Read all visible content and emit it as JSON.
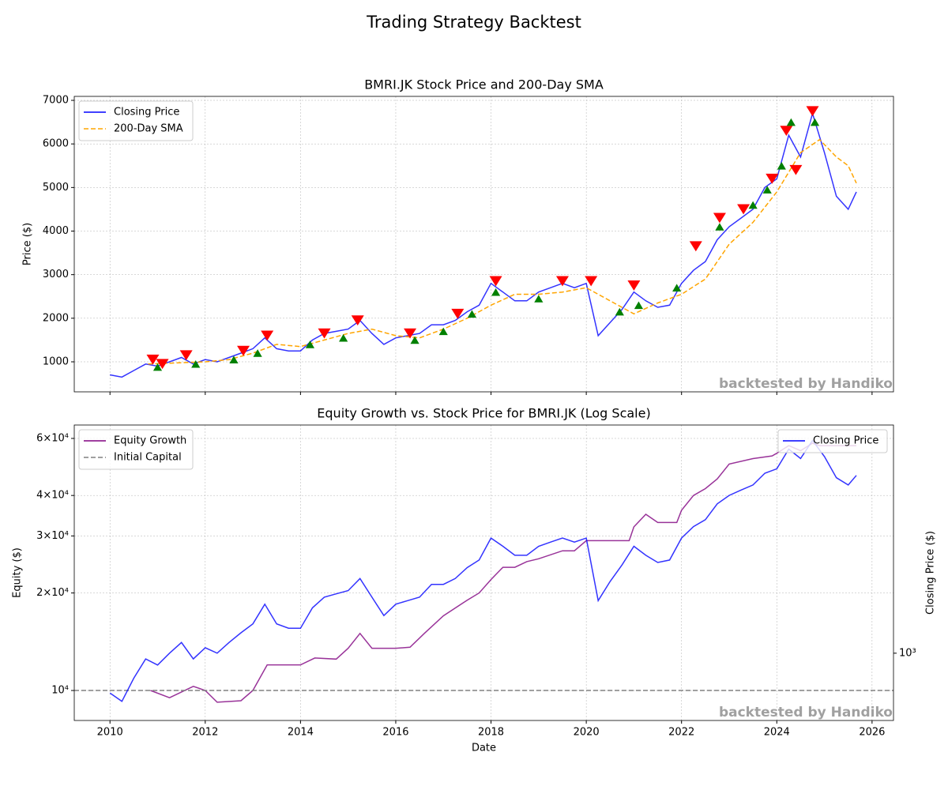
{
  "title": "Trading Strategy Backtest",
  "chart_data": [
    {
      "type": "line",
      "title": "BMRI.JK Stock Price and 200-Day SMA",
      "ylabel": "Price ($)",
      "xlim": [
        2009.25,
        2026.45
      ],
      "xticks": [
        2010,
        2012,
        2014,
        2016,
        2018,
        2020,
        2022,
        2024,
        2026
      ],
      "show_xticklabels": false,
      "ylim": [
        311,
        7091
      ],
      "yticks": [
        1000,
        2000,
        3000,
        4000,
        5000,
        6000,
        7000
      ],
      "grid": true,
      "legend": "upper left",
      "watermark": "backtested by Handiko",
      "series": [
        {
          "name": "Closing Price",
          "color": "#0000ff",
          "dashed": false,
          "x": [
            2010.0,
            2010.25,
            2010.5,
            2010.75,
            2011.0,
            2011.25,
            2011.5,
            2011.75,
            2012.0,
            2012.25,
            2012.5,
            2012.75,
            2013.0,
            2013.25,
            2013.5,
            2013.75,
            2014.0,
            2014.25,
            2014.5,
            2014.75,
            2015.0,
            2015.25,
            2015.5,
            2015.75,
            2016.0,
            2016.25,
            2016.5,
            2016.75,
            2017.0,
            2017.25,
            2017.5,
            2017.75,
            2018.0,
            2018.25,
            2018.5,
            2018.75,
            2019.0,
            2019.25,
            2019.5,
            2019.75,
            2020.0,
            2020.25,
            2020.5,
            2020.75,
            2021.0,
            2021.25,
            2021.5,
            2021.75,
            2022.0,
            2022.25,
            2022.5,
            2022.75,
            2023.0,
            2023.25,
            2023.5,
            2023.75,
            2024.0,
            2024.25,
            2024.5,
            2024.75,
            2025.0,
            2025.25,
            2025.5,
            2025.67
          ],
          "values": [
            700,
            650,
            800,
            950,
            900,
            1000,
            1100,
            950,
            1050,
            1000,
            1100,
            1200,
            1300,
            1550,
            1300,
            1250,
            1250,
            1500,
            1650,
            1700,
            1750,
            1950,
            1650,
            1400,
            1550,
            1600,
            1650,
            1850,
            1850,
            1950,
            2150,
            2300,
            2800,
            2600,
            2400,
            2400,
            2600,
            2700,
            2800,
            2700,
            2800,
            1600,
            1900,
            2200,
            2600,
            2400,
            2250,
            2300,
            2800,
            3100,
            3300,
            3800,
            4100,
            4300,
            4500,
            5000,
            5200,
            6200,
            5700,
            6700,
            5800,
            4800,
            4500,
            4900
          ]
        },
        {
          "name": "200-Day SMA",
          "color": "#ffa500",
          "dashed": true,
          "x": [
            2010.8,
            2011.5,
            2012.0,
            2012.5,
            2013.0,
            2013.5,
            2014.0,
            2014.5,
            2015.0,
            2015.5,
            2016.0,
            2016.5,
            2017.0,
            2017.5,
            2018.0,
            2018.5,
            2019.0,
            2019.5,
            2020.0,
            2020.5,
            2021.0,
            2021.5,
            2022.0,
            2022.5,
            2023.0,
            2023.5,
            2024.0,
            2024.5,
            2024.9,
            2025.25,
            2025.5,
            2025.67
          ],
          "values": [
            950,
            980,
            1000,
            1050,
            1200,
            1400,
            1350,
            1500,
            1650,
            1750,
            1600,
            1550,
            1750,
            2000,
            2300,
            2550,
            2550,
            2600,
            2700,
            2400,
            2100,
            2350,
            2550,
            2900,
            3700,
            4200,
            4900,
            5800,
            6100,
            5700,
            5500,
            5100
          ]
        }
      ],
      "markers": [
        {
          "marker": "v",
          "color": "#ff0000",
          "x": [
            2010.9,
            2011.1,
            2011.6,
            2012.8,
            2013.3,
            2014.5,
            2015.2,
            2016.3,
            2017.3,
            2018.1,
            2019.5,
            2020.1,
            2021.0,
            2022.3,
            2022.8,
            2023.3,
            2023.9,
            2024.2,
            2024.4,
            2024.75
          ],
          "values": [
            1050,
            950,
            1150,
            1250,
            1600,
            1650,
            1950,
            1650,
            2100,
            2850,
            2850,
            2850,
            2750,
            3650,
            4300,
            4500,
            5200,
            6300,
            5400,
            6750
          ]
        },
        {
          "marker": "^",
          "color": "#008000",
          "x": [
            2011.0,
            2011.8,
            2012.6,
            2013.1,
            2014.2,
            2014.9,
            2016.4,
            2017.0,
            2017.6,
            2018.1,
            2019.0,
            2020.7,
            2021.1,
            2021.9,
            2022.8,
            2023.5,
            2023.8,
            2024.1,
            2024.3,
            2024.8
          ],
          "values": [
            880,
            950,
            1050,
            1200,
            1400,
            1550,
            1500,
            1700,
            2100,
            2600,
            2450,
            2150,
            2300,
            2700,
            4100,
            4600,
            4950,
            5500,
            6500,
            6500
          ]
        }
      ]
    },
    {
      "type": "line",
      "title": "Equity Growth vs. Stock Price for BMRI.JK (Log Scale)",
      "xlabel": "Date",
      "ylabel": "Equity ($)",
      "y2label": "Closing Price ($)",
      "xlim": [
        2009.25,
        2026.45
      ],
      "xticks": [
        2010,
        2012,
        2014,
        2016,
        2018,
        2020,
        2022,
        2024,
        2026
      ],
      "show_xticklabels": true,
      "ylog": true,
      "ylim": [
        8080,
        66000
      ],
      "yticks": [
        {
          "value": 10000,
          "label": "10⁴"
        },
        {
          "value": 20000,
          "label": "2×10⁴"
        },
        {
          "value": 30000,
          "label": "3×10⁴"
        },
        {
          "value": 40000,
          "label": "4×10⁴"
        },
        {
          "value": 60000,
          "label": "6×10⁴"
        }
      ],
      "y2log": true,
      "y2lim": [
        548,
        7690
      ],
      "y2ticks": [
        {
          "value": 1000,
          "label": "10³"
        }
      ],
      "grid": true,
      "legend": "upper left",
      "legend2": "upper right",
      "watermark": "backtested by Handiko",
      "series": [
        {
          "name": "Equity Growth",
          "color": "#800080",
          "dashed": false,
          "x": [
            2010.85,
            2011.25,
            2011.75,
            2012.0,
            2012.25,
            2012.75,
            2013.0,
            2013.3,
            2013.6,
            2014.0,
            2014.3,
            2014.75,
            2015.0,
            2015.25,
            2015.5,
            2016.0,
            2016.3,
            2016.6,
            2017.0,
            2017.5,
            2017.75,
            2018.0,
            2018.25,
            2018.5,
            2018.75,
            2019.0,
            2019.5,
            2019.75,
            2020.0,
            2020.5,
            2020.9,
            2021.0,
            2021.25,
            2021.5,
            2021.9,
            2022.0,
            2022.25,
            2022.5,
            2022.75,
            2023.0,
            2023.5,
            2023.9,
            2024.0,
            2024.25,
            2024.5,
            2024.75,
            2024.9,
            2025.0,
            2025.67
          ],
          "values": [
            10000,
            9500,
            10300,
            10000,
            9200,
            9300,
            10000,
            12000,
            12000,
            12000,
            12600,
            12500,
            13500,
            15000,
            13500,
            13500,
            13600,
            15000,
            17000,
            19000,
            20000,
            22000,
            24000,
            24000,
            25000,
            25500,
            27000,
            27000,
            29000,
            29000,
            29000,
            32000,
            35000,
            33000,
            33000,
            36000,
            40000,
            42000,
            45000,
            50000,
            52000,
            53000,
            54000,
            57000,
            55000,
            58000,
            57000,
            57000,
            57000
          ]
        },
        {
          "name": "Initial Capital",
          "color": "#808080",
          "dashed": true,
          "hline": 10000
        },
        {
          "name": "Closing Price",
          "color": "#0000ff",
          "dashed": false,
          "axis": "y2",
          "x": [
            2010.0,
            2010.25,
            2010.5,
            2010.75,
            2011.0,
            2011.25,
            2011.5,
            2011.75,
            2012.0,
            2012.25,
            2012.5,
            2012.75,
            2013.0,
            2013.25,
            2013.5,
            2013.75,
            2014.0,
            2014.25,
            2014.5,
            2014.75,
            2015.0,
            2015.25,
            2015.5,
            2015.75,
            2016.0,
            2016.25,
            2016.5,
            2016.75,
            2017.0,
            2017.25,
            2017.5,
            2017.75,
            2018.0,
            2018.25,
            2018.5,
            2018.75,
            2019.0,
            2019.25,
            2019.5,
            2019.75,
            2020.0,
            2020.25,
            2020.5,
            2020.75,
            2021.0,
            2021.25,
            2021.5,
            2021.75,
            2022.0,
            2022.25,
            2022.5,
            2022.75,
            2023.0,
            2023.25,
            2023.5,
            2023.75,
            2024.0,
            2024.25,
            2024.5,
            2024.75,
            2025.0,
            2025.25,
            2025.5,
            2025.67
          ],
          "values": [
            700,
            650,
            800,
            950,
            900,
            1000,
            1100,
            950,
            1050,
            1000,
            1100,
            1200,
            1300,
            1550,
            1300,
            1250,
            1250,
            1500,
            1650,
            1700,
            1750,
            1950,
            1650,
            1400,
            1550,
            1600,
            1650,
            1850,
            1850,
            1950,
            2150,
            2300,
            2800,
            2600,
            2400,
            2400,
            2600,
            2700,
            2800,
            2700,
            2800,
            1600,
            1900,
            2200,
            2600,
            2400,
            2250,
            2300,
            2800,
            3100,
            3300,
            3800,
            4100,
            4300,
            4500,
            5000,
            5200,
            6200,
            5700,
            6700,
            5800,
            4800,
            4500,
            4900
          ]
        }
      ]
    }
  ]
}
